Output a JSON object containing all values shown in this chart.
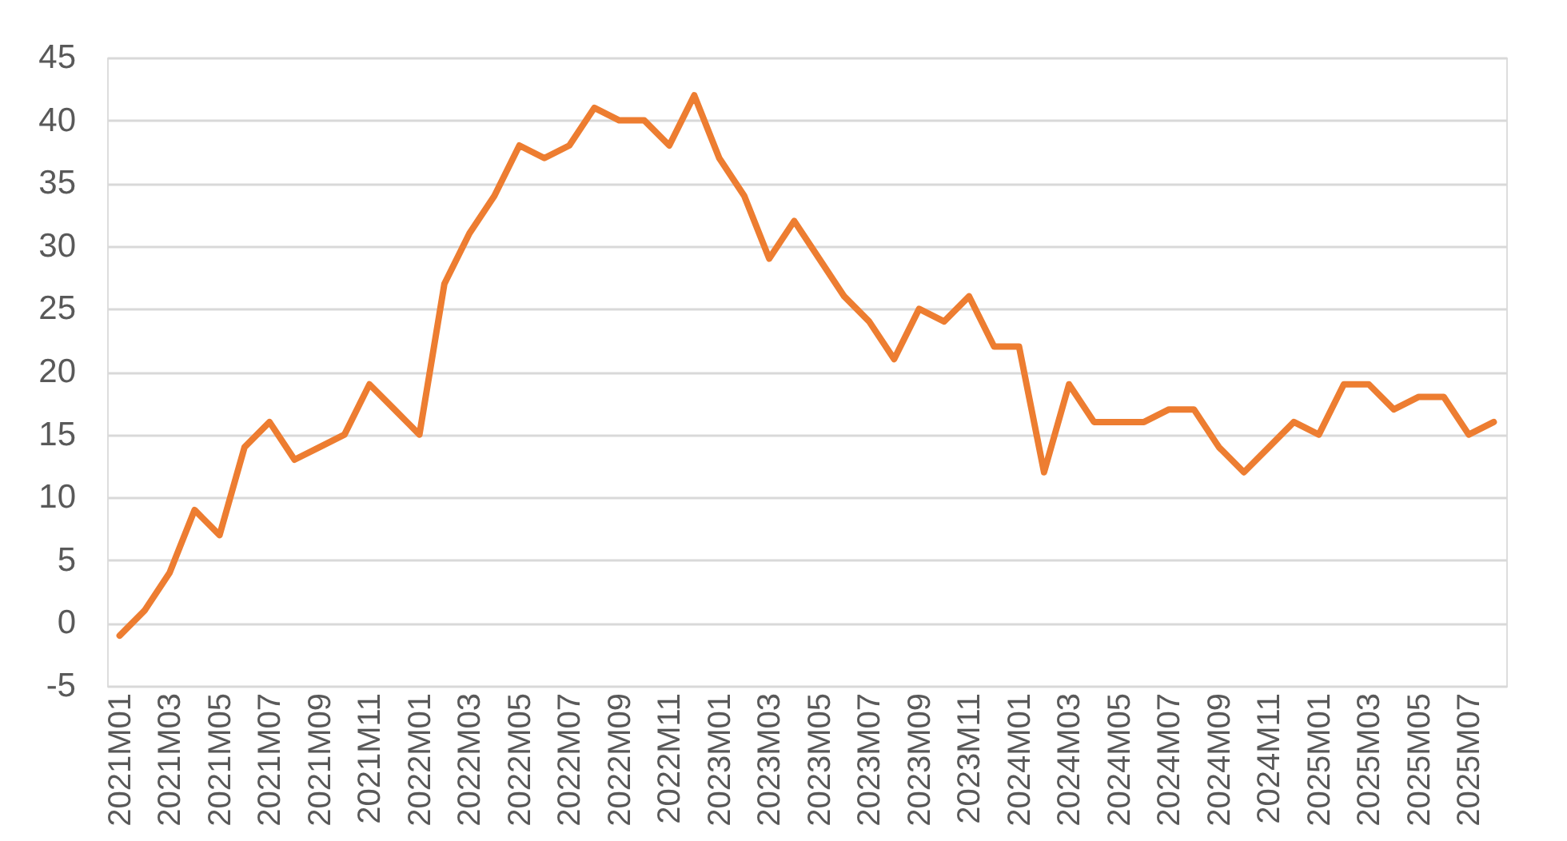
{
  "chart_data": {
    "type": "line",
    "categories": [
      "2021M01",
      null,
      "2021M03",
      null,
      "2021M05",
      null,
      "2021M07",
      null,
      "2021M09",
      null,
      "2021M11",
      null,
      "2022M01",
      null,
      "2022M03",
      null,
      "2022M05",
      null,
      "2022M07",
      null,
      "2022M09",
      null,
      "2022M11",
      null,
      "2023M01",
      null,
      "2023M03",
      null,
      "2023M05",
      null,
      "2023M07",
      null,
      "2023M09",
      null,
      "2023M11",
      null,
      "2024M01",
      null,
      "2024M03",
      null,
      "2024M05",
      null,
      "2024M07",
      null,
      "2024M09",
      null,
      "2024M11",
      null,
      "2025M01",
      null,
      "2025M03",
      null,
      "2025M05",
      null,
      "2025M07",
      null
    ],
    "series": [
      {
        "color": "#ed7d31",
        "values": [
          -1,
          1,
          4,
          9,
          7,
          14,
          16,
          13,
          14,
          15,
          19,
          17,
          15,
          27,
          31,
          34,
          38,
          37,
          38,
          41,
          40,
          40,
          38,
          42,
          37,
          34,
          29,
          32,
          29,
          26,
          24,
          21,
          25,
          24,
          26,
          22,
          22,
          12,
          19,
          16,
          16,
          16,
          17,
          17,
          14,
          12,
          14,
          16,
          15,
          19,
          19,
          17,
          18,
          18,
          15,
          16
        ]
      }
    ],
    "ylim": [
      -5,
      45
    ],
    "yticks": [
      -5,
      0,
      5,
      10,
      15,
      20,
      25,
      30,
      35,
      40,
      45
    ],
    "grid": "y"
  }
}
